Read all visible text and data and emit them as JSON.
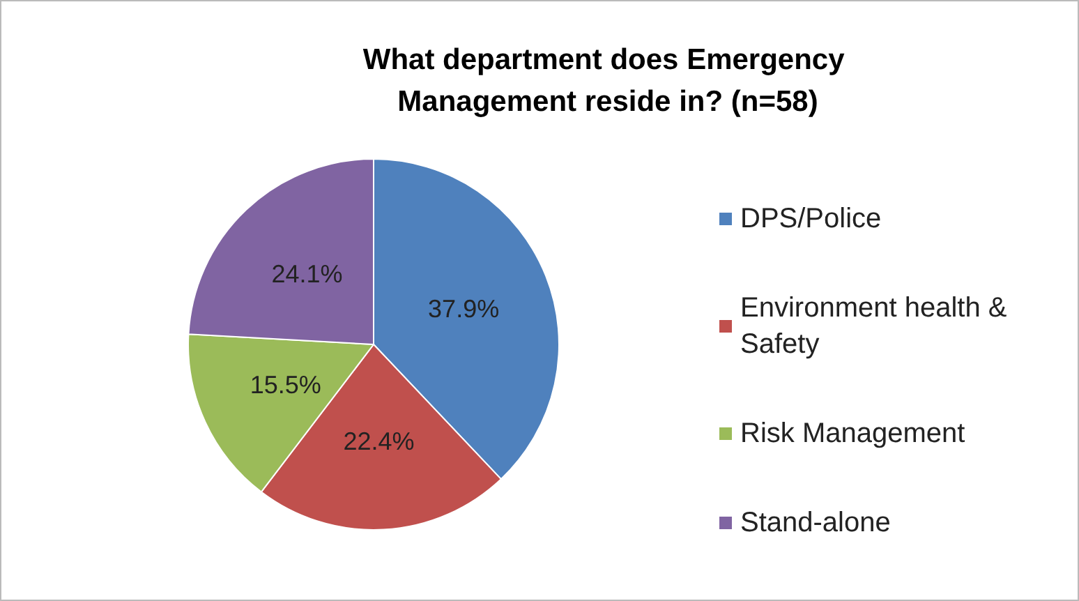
{
  "chart_data": {
    "type": "pie",
    "title": "What department does Emergency Management reside in? (n=58)",
    "categories": [
      "DPS/Police",
      "Environment health & Safety",
      "Risk Management",
      "Stand-alone"
    ],
    "values": [
      37.9,
      22.4,
      15.5,
      24.1
    ],
    "colors": [
      "#4f81bd",
      "#c0504d",
      "#9bbb59",
      "#8064a2"
    ],
    "value_labels": [
      "37.9%",
      "22.4%",
      "15.5%",
      "24.1%"
    ],
    "legend": "right"
  }
}
